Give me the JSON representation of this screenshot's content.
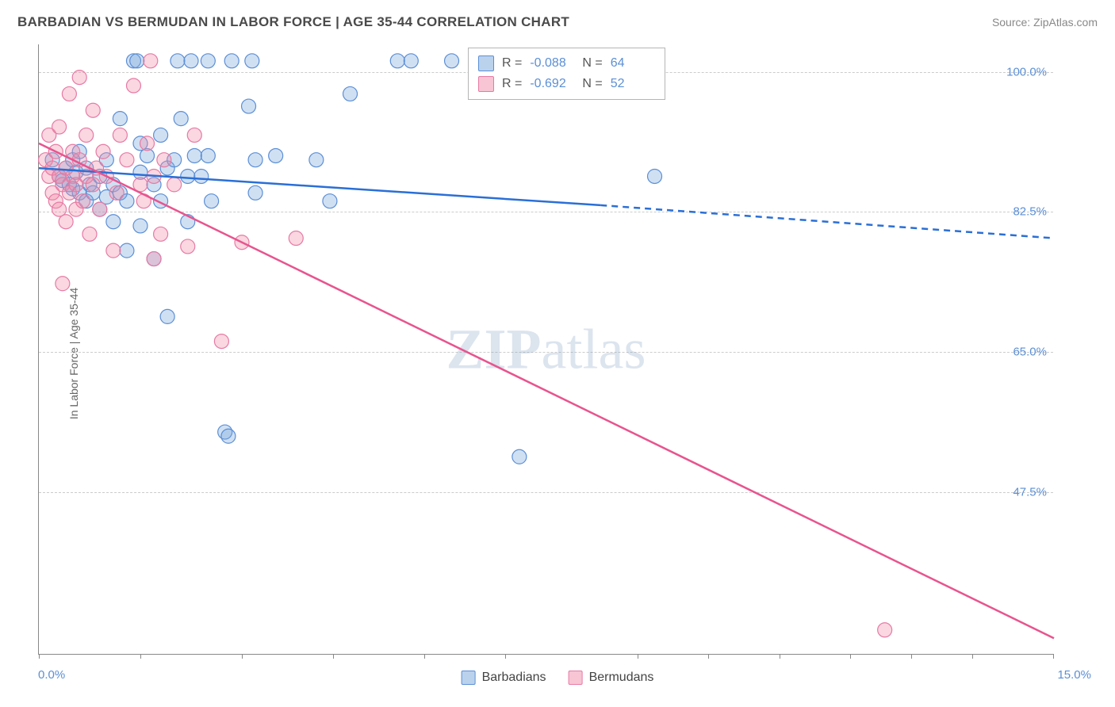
{
  "header": {
    "title": "BARBADIAN VS BERMUDAN IN LABOR FORCE | AGE 35-44 CORRELATION CHART",
    "source_label": "Source: ZipAtlas.com"
  },
  "watermark": {
    "zip": "ZIP",
    "atlas": "atlas",
    "fontsize": 72
  },
  "chart": {
    "type": "scatter",
    "ylabel": "In Labor Force | Age 35-44",
    "xlim": [
      0,
      15
    ],
    "ylim": [
      30,
      104
    ],
    "xaxis_min_label": "0.0%",
    "xaxis_max_label": "15.0%",
    "xtick_positions_pct": [
      0,
      10,
      20,
      29,
      38,
      46,
      59,
      66,
      73,
      80,
      86,
      92,
      100
    ],
    "ylabels": [
      {
        "pct_from_top": 4.5,
        "text": "100.0%"
      },
      {
        "pct_from_top": 27.5,
        "text": "82.5%"
      },
      {
        "pct_from_top": 50.5,
        "text": "65.0%"
      },
      {
        "pct_from_top": 73.5,
        "text": "47.5%"
      }
    ],
    "grid_color": "#cccccc",
    "axis_color": "#888888",
    "background_color": "#ffffff",
    "series": [
      {
        "name": "Barbadians",
        "marker_color_fill": "rgba(120,165,220,0.35)",
        "marker_color_stroke": "#5b8fd6",
        "marker_radius": 9,
        "stats": {
          "R": "-0.088",
          "N": "64"
        },
        "regression": {
          "line_color": "#2a6fd6",
          "line_width": 2.5,
          "solid": {
            "x1": 0,
            "y1": 89,
            "x2": 8.3,
            "y2": 84.5
          },
          "dashed": {
            "x1": 8.3,
            "y1": 84.5,
            "x2": 15,
            "y2": 80.5
          }
        },
        "points": [
          {
            "x": 0.2,
            "y": 90
          },
          {
            "x": 0.3,
            "y": 88
          },
          {
            "x": 0.35,
            "y": 87.5
          },
          {
            "x": 0.4,
            "y": 89
          },
          {
            "x": 0.45,
            "y": 87
          },
          {
            "x": 0.5,
            "y": 86.5
          },
          {
            "x": 0.5,
            "y": 90
          },
          {
            "x": 0.55,
            "y": 88.5
          },
          {
            "x": 0.6,
            "y": 86
          },
          {
            "x": 0.6,
            "y": 91
          },
          {
            "x": 0.7,
            "y": 85
          },
          {
            "x": 0.7,
            "y": 89
          },
          {
            "x": 0.75,
            "y": 87
          },
          {
            "x": 0.8,
            "y": 86
          },
          {
            "x": 0.9,
            "y": 88
          },
          {
            "x": 0.9,
            "y": 84
          },
          {
            "x": 1.0,
            "y": 90
          },
          {
            "x": 1.0,
            "y": 85.5
          },
          {
            "x": 1.1,
            "y": 82.5
          },
          {
            "x": 1.1,
            "y": 87
          },
          {
            "x": 1.2,
            "y": 95
          },
          {
            "x": 1.2,
            "y": 86
          },
          {
            "x": 1.3,
            "y": 79
          },
          {
            "x": 1.3,
            "y": 85
          },
          {
            "x": 1.4,
            "y": 102
          },
          {
            "x": 1.45,
            "y": 102
          },
          {
            "x": 1.5,
            "y": 92
          },
          {
            "x": 1.5,
            "y": 88.5
          },
          {
            "x": 1.5,
            "y": 82
          },
          {
            "x": 1.6,
            "y": 90.5
          },
          {
            "x": 1.7,
            "y": 87
          },
          {
            "x": 1.7,
            "y": 78
          },
          {
            "x": 1.8,
            "y": 93
          },
          {
            "x": 1.8,
            "y": 85
          },
          {
            "x": 1.9,
            "y": 71
          },
          {
            "x": 1.9,
            "y": 89
          },
          {
            "x": 2.0,
            "y": 90
          },
          {
            "x": 2.05,
            "y": 102
          },
          {
            "x": 2.1,
            "y": 95
          },
          {
            "x": 2.2,
            "y": 88
          },
          {
            "x": 2.2,
            "y": 82.5
          },
          {
            "x": 2.25,
            "y": 102
          },
          {
            "x": 2.3,
            "y": 90.5
          },
          {
            "x": 2.4,
            "y": 88
          },
          {
            "x": 2.5,
            "y": 90.5
          },
          {
            "x": 2.5,
            "y": 102
          },
          {
            "x": 2.55,
            "y": 85
          },
          {
            "x": 2.75,
            "y": 57
          },
          {
            "x": 2.8,
            "y": 56.5
          },
          {
            "x": 2.85,
            "y": 102
          },
          {
            "x": 3.1,
            "y": 96.5
          },
          {
            "x": 3.15,
            "y": 102
          },
          {
            "x": 3.2,
            "y": 90
          },
          {
            "x": 3.2,
            "y": 86
          },
          {
            "x": 3.5,
            "y": 90.5
          },
          {
            "x": 4.1,
            "y": 90
          },
          {
            "x": 4.3,
            "y": 85
          },
          {
            "x": 4.6,
            "y": 98
          },
          {
            "x": 5.3,
            "y": 102
          },
          {
            "x": 5.5,
            "y": 102
          },
          {
            "x": 6.1,
            "y": 102
          },
          {
            "x": 7.1,
            "y": 54
          },
          {
            "x": 8.3,
            "y": 102
          },
          {
            "x": 9.1,
            "y": 88
          }
        ]
      },
      {
        "name": "Bermudans",
        "marker_color_fill": "rgba(240,140,170,0.35)",
        "marker_color_stroke": "#e77aa3",
        "marker_radius": 9,
        "stats": {
          "R": "-0.692",
          "N": "52"
        },
        "regression": {
          "line_color": "#e8548e",
          "line_width": 2.5,
          "solid": {
            "x1": 0,
            "y1": 92,
            "x2": 15,
            "y2": 32
          },
          "dashed": null
        },
        "points": [
          {
            "x": 0.1,
            "y": 90
          },
          {
            "x": 0.15,
            "y": 88
          },
          {
            "x": 0.15,
            "y": 93
          },
          {
            "x": 0.2,
            "y": 86
          },
          {
            "x": 0.2,
            "y": 89
          },
          {
            "x": 0.25,
            "y": 91
          },
          {
            "x": 0.25,
            "y": 85
          },
          {
            "x": 0.3,
            "y": 88
          },
          {
            "x": 0.3,
            "y": 84
          },
          {
            "x": 0.3,
            "y": 94
          },
          {
            "x": 0.35,
            "y": 87
          },
          {
            "x": 0.35,
            "y": 75
          },
          {
            "x": 0.4,
            "y": 89
          },
          {
            "x": 0.4,
            "y": 82.5
          },
          {
            "x": 0.45,
            "y": 86
          },
          {
            "x": 0.45,
            "y": 98
          },
          {
            "x": 0.5,
            "y": 88
          },
          {
            "x": 0.5,
            "y": 91
          },
          {
            "x": 0.55,
            "y": 87
          },
          {
            "x": 0.55,
            "y": 84
          },
          {
            "x": 0.6,
            "y": 90
          },
          {
            "x": 0.6,
            "y": 100
          },
          {
            "x": 0.65,
            "y": 85
          },
          {
            "x": 0.7,
            "y": 93
          },
          {
            "x": 0.7,
            "y": 88
          },
          {
            "x": 0.75,
            "y": 81
          },
          {
            "x": 0.8,
            "y": 96
          },
          {
            "x": 0.8,
            "y": 87
          },
          {
            "x": 0.85,
            "y": 89
          },
          {
            "x": 0.9,
            "y": 84
          },
          {
            "x": 0.95,
            "y": 91
          },
          {
            "x": 1.0,
            "y": 88
          },
          {
            "x": 1.1,
            "y": 79
          },
          {
            "x": 1.15,
            "y": 86
          },
          {
            "x": 1.2,
            "y": 93
          },
          {
            "x": 1.3,
            "y": 90
          },
          {
            "x": 1.4,
            "y": 99
          },
          {
            "x": 1.5,
            "y": 87
          },
          {
            "x": 1.55,
            "y": 85
          },
          {
            "x": 1.6,
            "y": 92
          },
          {
            "x": 1.65,
            "y": 102
          },
          {
            "x": 1.7,
            "y": 88
          },
          {
            "x": 1.8,
            "y": 81
          },
          {
            "x": 1.85,
            "y": 90
          },
          {
            "x": 2.0,
            "y": 87
          },
          {
            "x": 2.2,
            "y": 79.5
          },
          {
            "x": 2.3,
            "y": 93
          },
          {
            "x": 2.7,
            "y": 68
          },
          {
            "x": 3.0,
            "y": 80
          },
          {
            "x": 3.8,
            "y": 80.5
          },
          {
            "x": 12.5,
            "y": 33
          },
          {
            "x": 1.7,
            "y": 78
          }
        ]
      }
    ]
  },
  "bottom_legend": [
    {
      "label": "Barbadians",
      "fill": "rgba(120,165,220,0.5)",
      "stroke": "#5b8fd6"
    },
    {
      "label": "Bermudans",
      "fill": "rgba(240,140,170,0.5)",
      "stroke": "#e77aa3"
    }
  ],
  "stat_legend": {
    "rows": [
      {
        "fill": "rgba(120,165,220,0.5)",
        "stroke": "#5b8fd6",
        "r_label": "R =",
        "r_val": "-0.088",
        "n_label": "N =",
        "n_val": "64"
      },
      {
        "fill": "rgba(240,140,170,0.5)",
        "stroke": "#e77aa3",
        "r_label": "R =",
        "r_val": "-0.692",
        "n_label": "N =",
        "n_val": "52"
      }
    ]
  }
}
